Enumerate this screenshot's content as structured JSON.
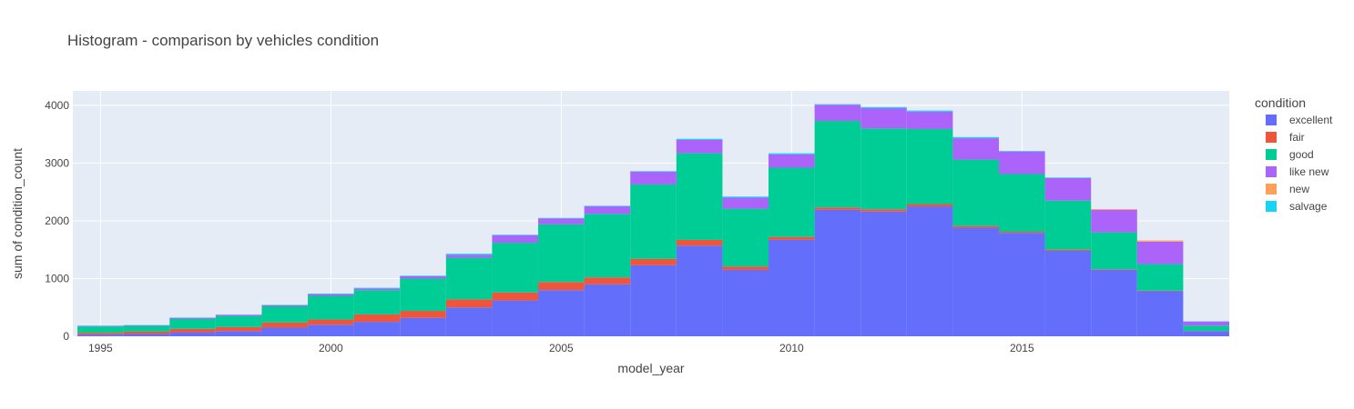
{
  "chart_data": {
    "type": "bar",
    "barmode": "stack",
    "title": "Histogram - comparison by vehicles condition",
    "xlabel": "model_year",
    "ylabel": "sum of condition_count",
    "xlim": [
      1994.4,
      2019.5
    ],
    "ylim": [
      0,
      4250
    ],
    "xticks": [
      "1995",
      "2000",
      "2005",
      "2010",
      "2015"
    ],
    "yticks": [
      "0",
      "1000",
      "2000",
      "3000",
      "4000"
    ],
    "grid": true,
    "legend_title": "condition",
    "legend_position": "right",
    "bins": [
      [
        1994.5,
        1995.5
      ],
      [
        1995.5,
        1996.5
      ],
      [
        1996.5,
        1997.5
      ],
      [
        1997.5,
        1998.5
      ],
      [
        1998.5,
        1999.5
      ],
      [
        1999.5,
        2000.5
      ],
      [
        2000.5,
        2001.5
      ],
      [
        2001.5,
        2002.5
      ],
      [
        2002.5,
        2003.5
      ],
      [
        2003.5,
        2004.5
      ],
      [
        2004.5,
        2005.5
      ],
      [
        2005.5,
        2006.5
      ],
      [
        2006.5,
        2007.5
      ],
      [
        2007.5,
        2008.5
      ],
      [
        2008.5,
        2009.5
      ],
      [
        2009.5,
        2010.5
      ],
      [
        2010.5,
        2011.5
      ],
      [
        2011.5,
        2012.5
      ],
      [
        2012.5,
        2013.5
      ],
      [
        2013.5,
        2014.5
      ],
      [
        2014.5,
        2015.5
      ],
      [
        2015.5,
        2016.5
      ],
      [
        2016.5,
        2017.5
      ],
      [
        2017.5,
        2018.5
      ],
      [
        2018.5,
        2019.5
      ]
    ],
    "series": [
      {
        "name": "excellent",
        "color": "#636efa",
        "values": [
          30,
          40,
          70,
          90,
          150,
          200,
          250,
          320,
          500,
          620,
          800,
          900,
          1230,
          1570,
          1150,
          1670,
          2190,
          2160,
          2250,
          1880,
          1790,
          1480,
          1150,
          780,
          90
        ]
      },
      {
        "name": "fair",
        "color": "#ef553b",
        "values": [
          30,
          40,
          60,
          70,
          90,
          90,
          130,
          120,
          140,
          140,
          140,
          120,
          110,
          100,
          60,
          50,
          40,
          40,
          40,
          30,
          20,
          20,
          10,
          10,
          5
        ]
      },
      {
        "name": "good",
        "color": "#00cc96",
        "values": [
          110,
          100,
          170,
          190,
          280,
          410,
          420,
          560,
          720,
          860,
          1000,
          1100,
          1290,
          1500,
          1000,
          1200,
          1500,
          1400,
          1300,
          1150,
          1000,
          850,
          640,
          460,
          90
        ]
      },
      {
        "name": "like new",
        "color": "#ab63fa",
        "values": [
          10,
          10,
          20,
          20,
          20,
          30,
          30,
          40,
          50,
          130,
          100,
          130,
          220,
          230,
          190,
          230,
          280,
          350,
          300,
          370,
          390,
          390,
          390,
          390,
          70
        ]
      },
      {
        "name": "new",
        "color": "#ffa15a",
        "values": [
          0,
          0,
          0,
          0,
          0,
          0,
          0,
          0,
          0,
          0,
          0,
          0,
          0,
          0,
          0,
          0,
          0,
          0,
          0,
          0,
          0,
          0,
          15,
          20,
          0
        ]
      },
      {
        "name": "salvage",
        "color": "#19d3f3",
        "values": [
          5,
          5,
          5,
          5,
          5,
          10,
          10,
          10,
          20,
          10,
          10,
          10,
          10,
          20,
          20,
          20,
          10,
          20,
          20,
          20,
          10,
          10,
          0,
          0,
          5
        ]
      }
    ]
  },
  "colors": {
    "plot_background": "#e5ecf6",
    "gridline": "#ffffff",
    "text": "#444444"
  }
}
